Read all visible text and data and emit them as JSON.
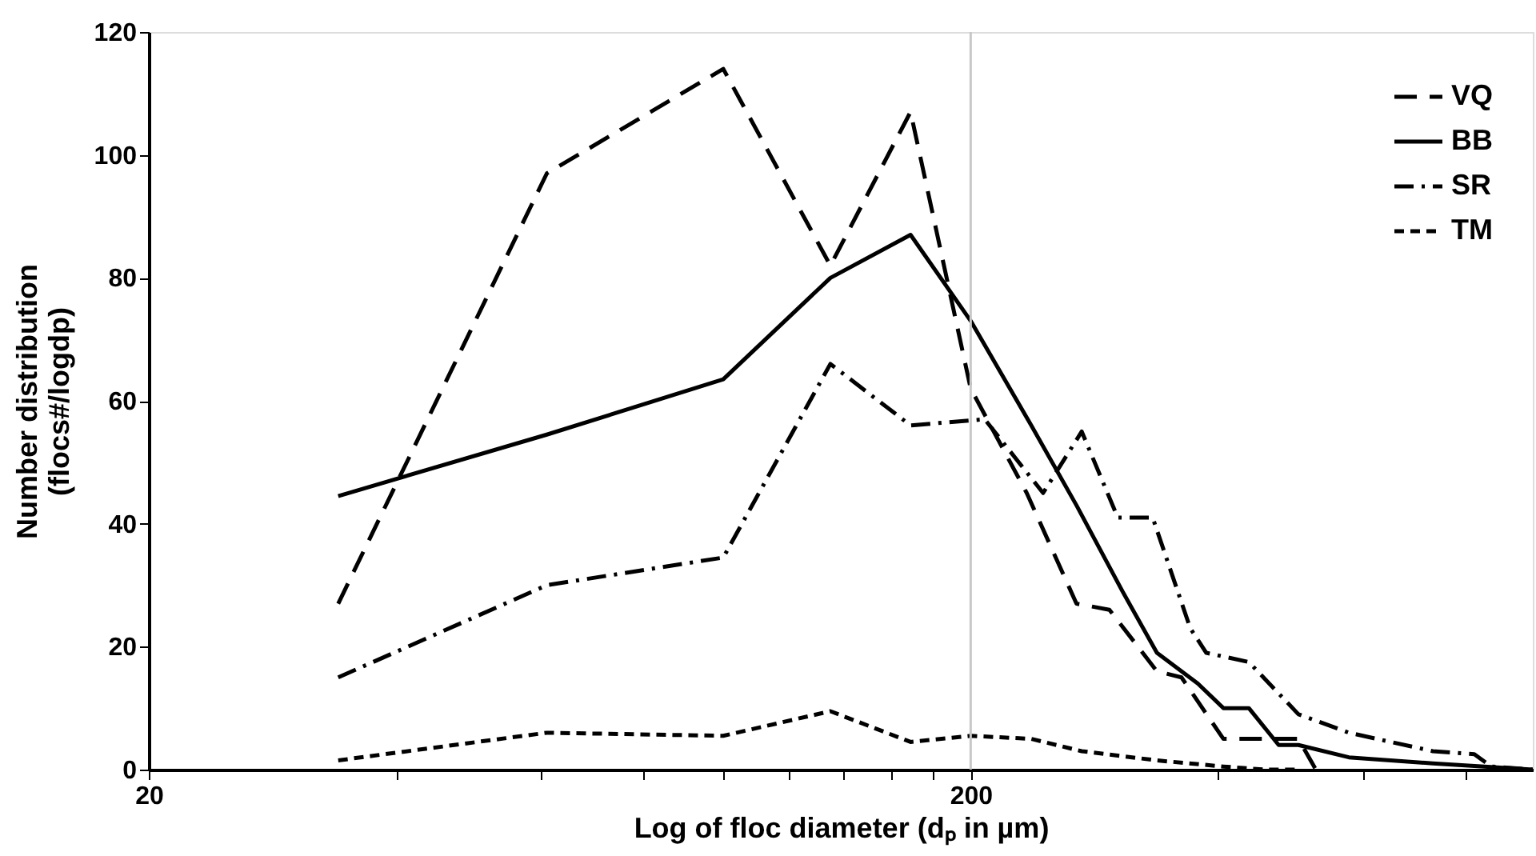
{
  "chart_data": {
    "type": "line",
    "xlabel": "Log of floc diameter (dₚ in µm)",
    "ylabel": "Number distribution\n(flocs#/logdp)",
    "log": "x",
    "xlim": [
      20,
      966
    ],
    "ylim": [
      0,
      120
    ],
    "xticks": [
      20,
      {
        "value": 40,
        "label": null
      },
      {
        "value": 60,
        "label": null
      },
      {
        "value": 80,
        "label": null
      },
      {
        "value": 100,
        "label": null
      },
      {
        "value": 120,
        "label": null
      },
      {
        "value": 140,
        "label": null
      },
      {
        "value": 160,
        "label": null
      },
      {
        "value": 180,
        "label": null
      },
      200,
      {
        "value": 400,
        "label": null
      },
      {
        "value": 600,
        "label": null
      },
      {
        "value": 800,
        "label": null
      }
    ],
    "yticks": [
      0,
      20,
      40,
      60,
      80,
      100,
      120
    ],
    "grid": false,
    "legend": "top right",
    "marker": "none",
    "ref_lines": [
      {
        "axis": "x",
        "value": 200,
        "color": "#c8c8c8",
        "line_style": "solid"
      }
    ],
    "series": [
      {
        "name": "VQ",
        "color": "#000000",
        "line_style": "dashed",
        "x": [
          34,
          61,
          100,
          135,
          169,
          200,
          234,
          269,
          295,
          337,
          361,
          406,
          456,
          501,
          526
        ],
        "values": [
          27,
          97,
          114,
          82,
          107,
          62,
          45,
          27,
          26,
          16,
          15,
          5,
          5,
          5,
          0
        ]
      },
      {
        "name": "BB",
        "color": "#000000",
        "line_style": "solid",
        "x": [
          34,
          61,
          100,
          135,
          169,
          200,
          237,
          269,
          306,
          337,
          378,
          406,
          436,
          474,
          501,
          577,
          730,
          966
        ],
        "values": [
          44.5,
          54.5,
          63.5,
          80,
          87,
          73,
          56,
          43,
          29,
          19,
          14,
          10,
          10,
          4,
          4,
          2,
          1,
          0
        ]
      },
      {
        "name": "SR",
        "color": "#000000",
        "line_style": "dashdot",
        "x": [
          34,
          61,
          100,
          135,
          169,
          208,
          245,
          273,
          302,
          333,
          370,
          387,
          436,
          501,
          577,
          730,
          820,
          860,
          966
        ],
        "values": [
          15,
          30,
          34.5,
          66,
          56,
          57,
          45,
          55,
          41,
          41,
          23,
          19,
          17.5,
          9,
          6,
          3,
          2.5,
          0.5,
          0
        ]
      },
      {
        "name": "TM",
        "color": "#000000",
        "line_style": "shortdash",
        "x": [
          34,
          61,
          100,
          135,
          169,
          200,
          237,
          273,
          337,
          406,
          456,
          501
        ],
        "values": [
          1.5,
          6,
          5.5,
          9.5,
          4.5,
          5.5,
          5,
          3,
          1.5,
          0.5,
          0,
          0
        ]
      }
    ]
  }
}
